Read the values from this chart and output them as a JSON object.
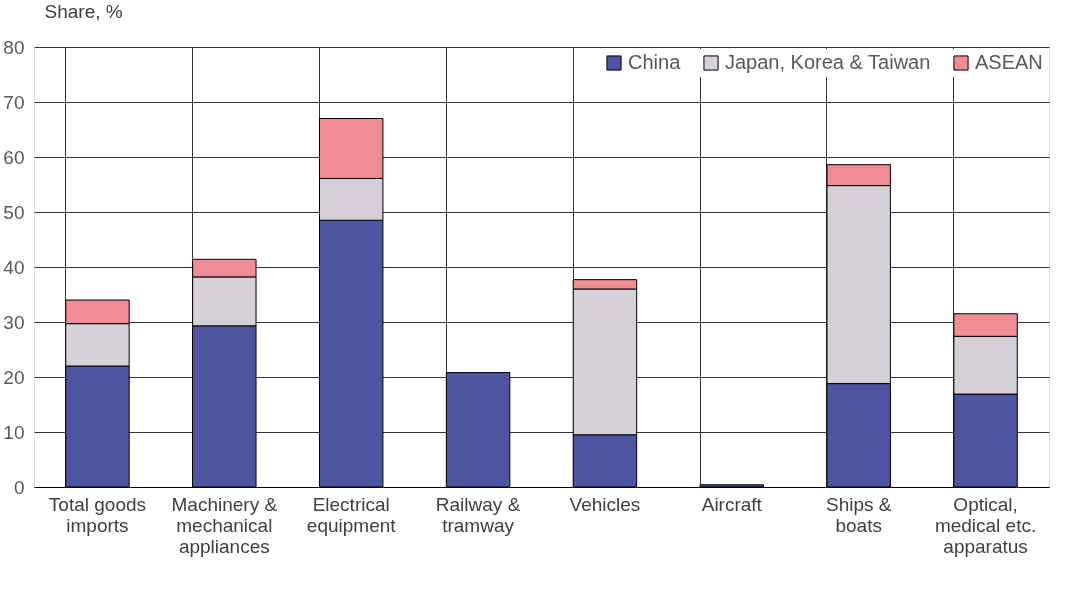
{
  "chart_data": {
    "type": "bar",
    "stacked": true,
    "ylabel": "Share, %",
    "categories": [
      "Total goods imports",
      "Machinery & mechanical appliances",
      "Electrical equipment",
      "Railway & tramway",
      "Vehicles",
      "Aircraft",
      "Ships & boats",
      "Optical, medical etc. apparatus"
    ],
    "series": [
      {
        "name": "China",
        "color": "#4d55a3",
        "values": [
          22.0,
          29.3,
          48.5,
          20.8,
          9.5,
          0.4,
          18.8,
          16.9
        ]
      },
      {
        "name": "Japan, Korea & Taiwan",
        "color": "#d6d0d8",
        "values": [
          7.7,
          8.9,
          7.6,
          null,
          26.5,
          null,
          36.0,
          10.5
        ]
      },
      {
        "name": "ASEAN",
        "color": "#f08c94",
        "values": [
          4.3,
          3.2,
          10.9,
          null,
          1.7,
          null,
          3.8,
          4.1
        ]
      }
    ],
    "ylim": [
      0,
      80
    ],
    "yticks": [
      0,
      10,
      20,
      30,
      40,
      50,
      60,
      70,
      80
    ],
    "grid": true,
    "legend": "top right"
  }
}
